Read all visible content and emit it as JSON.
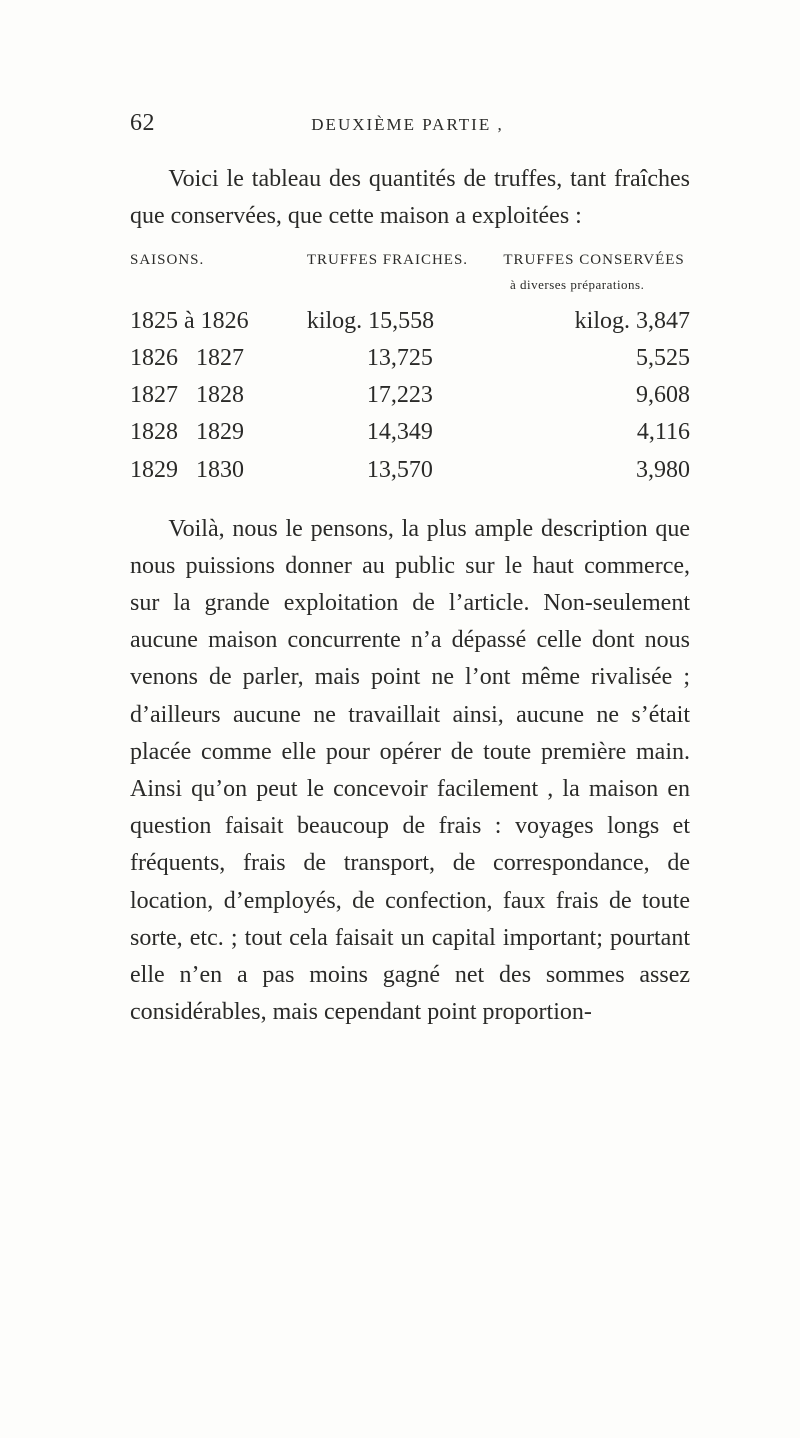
{
  "page_number_label": "62",
  "running_head": "DEUXIÈME PARTIE ,",
  "para1": "Voici le tableau des quantités de truffes, tant fraîches que conservées, que cette maison a exploitées :",
  "table": {
    "head": {
      "col1": "SAISONS.",
      "col2": "TRUFFES FRAICHES.",
      "col3": "TRUFFES CONSERVÉES"
    },
    "subhead_col3": "à diverses préparations.",
    "rows": [
      {
        "c1": "1825 à 1826",
        "c2": "kilog. 15,558",
        "c3": "kilog. 3,847"
      },
      {
        "c1": "1826   1827",
        "c2": "          13,725",
        "c3": "5,525"
      },
      {
        "c1": "1827   1828",
        "c2": "          17,223",
        "c3": "9,608"
      },
      {
        "c1": "1828   1829",
        "c2": "          14,349",
        "c3": "4,116"
      },
      {
        "c1": "1829   1830",
        "c2": "          13,570",
        "c3": "3,980"
      }
    ]
  },
  "para2": "Voilà, nous le pensons, la plus ample description que nous puissions donner au public sur le haut commerce, sur la grande exploitation de l’article. Non-seulement aucune maison concurrente n’a dépassé celle dont nous venons de parler, mais point ne l’ont même rivalisée ; d’ailleurs aucune ne travaillait ainsi, aucune ne s’était placée comme elle pour opérer de toute première main. Ainsi qu’on peut le concevoir facilement , la maison en question faisait beaucoup de frais : voyages longs et fréquents, frais de transport, de correspondance, de location, d’employés, de confection, faux frais de toute sorte, etc. ; tout cela faisait un capital important; pourtant elle n’en a pas moins gagné net des sommes assez considérables, mais cependant point proportion-"
}
